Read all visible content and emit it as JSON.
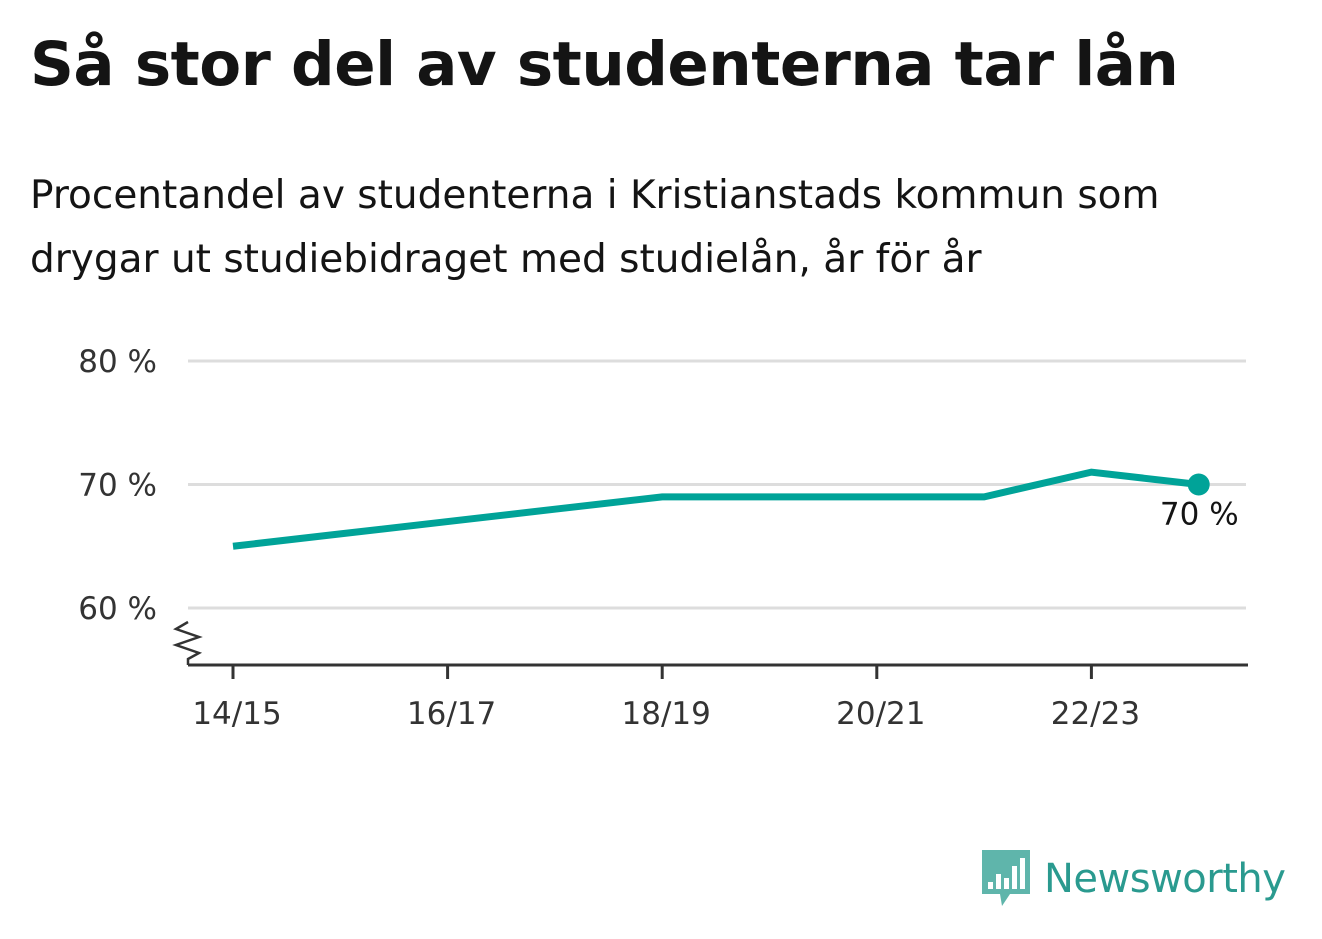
{
  "header": {
    "title": "Så stor del av studenterna tar lån",
    "subtitle": "Procentandel av studenterna i Kristianstads kommun som drygar ut studiebidraget med studielån, år för år"
  },
  "brand": {
    "name": "Newsworthy",
    "logo_icon": "bar-chart-speech-bubble-icon",
    "color": "#2a9a8f"
  },
  "chart_data": {
    "type": "line",
    "x": [
      "14/15",
      "15/16",
      "16/17",
      "17/18",
      "18/19",
      "19/20",
      "20/21",
      "21/22",
      "22/23",
      "23/24"
    ],
    "tick_labels": [
      "14/15",
      "16/17",
      "18/19",
      "20/21",
      "22/23"
    ],
    "series": [
      {
        "values": [
          65,
          66,
          67,
          68,
          69,
          69,
          69,
          69,
          71,
          70
        ],
        "color": "#00a398"
      }
    ],
    "y_ticks": [
      {
        "value": 60,
        "label": "60 %"
      },
      {
        "value": 70,
        "label": "70 %"
      },
      {
        "value": 80,
        "label": "80 %"
      }
    ],
    "ylim": [
      55,
      80
    ],
    "y_axis_break": true,
    "grid": true,
    "end_label": "70 %"
  }
}
